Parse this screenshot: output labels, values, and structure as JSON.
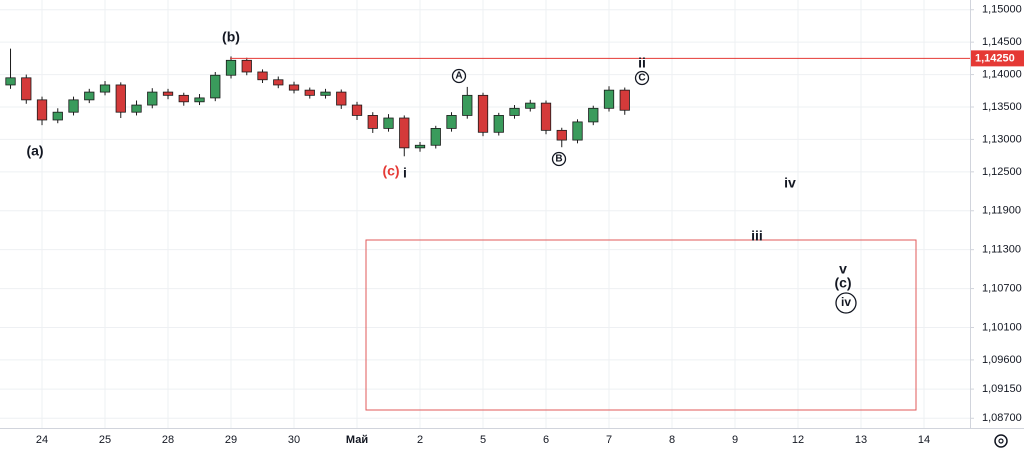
{
  "chart_data": {
    "type": "candlestick",
    "categories": [
      "24",
      "25",
      "28",
      "29",
      "30",
      "Май",
      "2",
      "5",
      "6",
      "7",
      "8",
      "9",
      "12",
      "13",
      "14"
    ],
    "xlim": [
      -0.667,
      14.73
    ],
    "ylim": [
      1.0855,
      1.1515
    ],
    "yticks": [
      {
        "value": 1.15,
        "label": "1,15000"
      },
      {
        "value": 1.145,
        "label": "1,14500"
      },
      {
        "value": 1.14,
        "label": "1,14000"
      },
      {
        "value": 1.135,
        "label": "1,13500"
      },
      {
        "value": 1.13,
        "label": "1,13000"
      },
      {
        "value": 1.125,
        "label": "1,12500"
      },
      {
        "value": 1.119,
        "label": "1,11900"
      },
      {
        "value": 1.113,
        "label": "1,11300"
      },
      {
        "value": 1.107,
        "label": "1,10700"
      },
      {
        "value": 1.101,
        "label": "1,10100"
      },
      {
        "value": 1.096,
        "label": "1,09600"
      },
      {
        "value": 1.0915,
        "label": "1,09150"
      },
      {
        "value": 1.087,
        "label": "1,08700"
      }
    ],
    "grid": true,
    "up_color": "#3a9b5c",
    "down_color": "#d43a3a",
    "price_line": {
      "value": 1.1425,
      "label": "1,14250",
      "color": "#e53935"
    },
    "x": [
      -0.5,
      -0.25,
      0,
      0.25,
      0.5,
      0.75,
      1,
      1.25,
      1.5,
      1.75,
      2,
      2.25,
      2.5,
      2.75,
      3,
      3.25,
      3.5,
      3.75,
      4,
      4.25,
      4.5,
      4.75,
      5,
      5.25,
      5.5,
      5.75,
      6,
      6.25,
      6.5,
      6.75,
      7,
      7.25,
      7.5,
      7.75,
      8,
      8.25,
      8.5,
      8.75,
      9,
      9.25
    ],
    "open": [
      1.1384,
      1.1395,
      1.1361,
      1.133,
      1.1342,
      1.1361,
      1.1373,
      1.1384,
      1.1342,
      1.1353,
      1.1373,
      1.1368,
      1.1358,
      1.1364,
      1.1399,
      1.1422,
      1.1404,
      1.1392,
      1.1384,
      1.1376,
      1.1368,
      1.1373,
      1.1353,
      1.1337,
      1.1317,
      1.1333,
      1.1287,
      1.1291,
      1.1317,
      1.1337,
      1.1368,
      1.1311,
      1.1337,
      1.1348,
      1.1356,
      1.1314,
      1.1299,
      1.1327,
      1.1348,
      1.1376
    ],
    "high": [
      1.144,
      1.14,
      1.1366,
      1.1348,
      1.1366,
      1.1378,
      1.139,
      1.1388,
      1.136,
      1.1379,
      1.1378,
      1.1372,
      1.137,
      1.1404,
      1.1428,
      1.1426,
      1.1408,
      1.1397,
      1.1389,
      1.138,
      1.1378,
      1.1377,
      1.1358,
      1.1342,
      1.1339,
      1.1337,
      1.1296,
      1.1321,
      1.1342,
      1.1381,
      1.1372,
      1.1341,
      1.1353,
      1.1361,
      1.136,
      1.1318,
      1.1331,
      1.1352,
      1.1382,
      1.138
    ],
    "low": [
      1.1378,
      1.1355,
      1.1322,
      1.1325,
      1.1337,
      1.1356,
      1.1368,
      1.1333,
      1.1337,
      1.1348,
      1.1362,
      1.1352,
      1.1353,
      1.1359,
      1.1394,
      1.1399,
      1.1387,
      1.1379,
      1.1371,
      1.1363,
      1.1363,
      1.1347,
      1.133,
      1.131,
      1.1312,
      1.1274,
      1.1281,
      1.1286,
      1.1312,
      1.1332,
      1.1305,
      1.1306,
      1.1332,
      1.1343,
      1.1308,
      1.1288,
      1.1294,
      1.1322,
      1.1343,
      1.1338
    ],
    "close": [
      1.1395,
      1.1361,
      1.133,
      1.1342,
      1.1361,
      1.1373,
      1.1384,
      1.1342,
      1.1353,
      1.1373,
      1.1368,
      1.1358,
      1.1364,
      1.1399,
      1.1422,
      1.1404,
      1.1392,
      1.1384,
      1.1376,
      1.1368,
      1.1373,
      1.1353,
      1.1337,
      1.1317,
      1.1333,
      1.1287,
      1.1291,
      1.1317,
      1.1337,
      1.1368,
      1.1311,
      1.1337,
      1.1348,
      1.1356,
      1.1314,
      1.1299,
      1.1327,
      1.1348,
      1.1376,
      1.1345
    ],
    "annotations": [
      {
        "text": "(a)"
      },
      {
        "text": "(b)"
      },
      {
        "text": "(c)",
        "color": "#e53935"
      },
      {
        "text": "i"
      },
      {
        "text": "A",
        "circled": true
      },
      {
        "text": "ii"
      },
      {
        "text": "C",
        "circled": true
      },
      {
        "text": "B",
        "circled": true
      },
      {
        "text": "iv"
      },
      {
        "text": "iii"
      },
      {
        "text": "v"
      },
      {
        "text": "(c)"
      },
      {
        "text": "iv",
        "circled": true
      }
    ]
  }
}
